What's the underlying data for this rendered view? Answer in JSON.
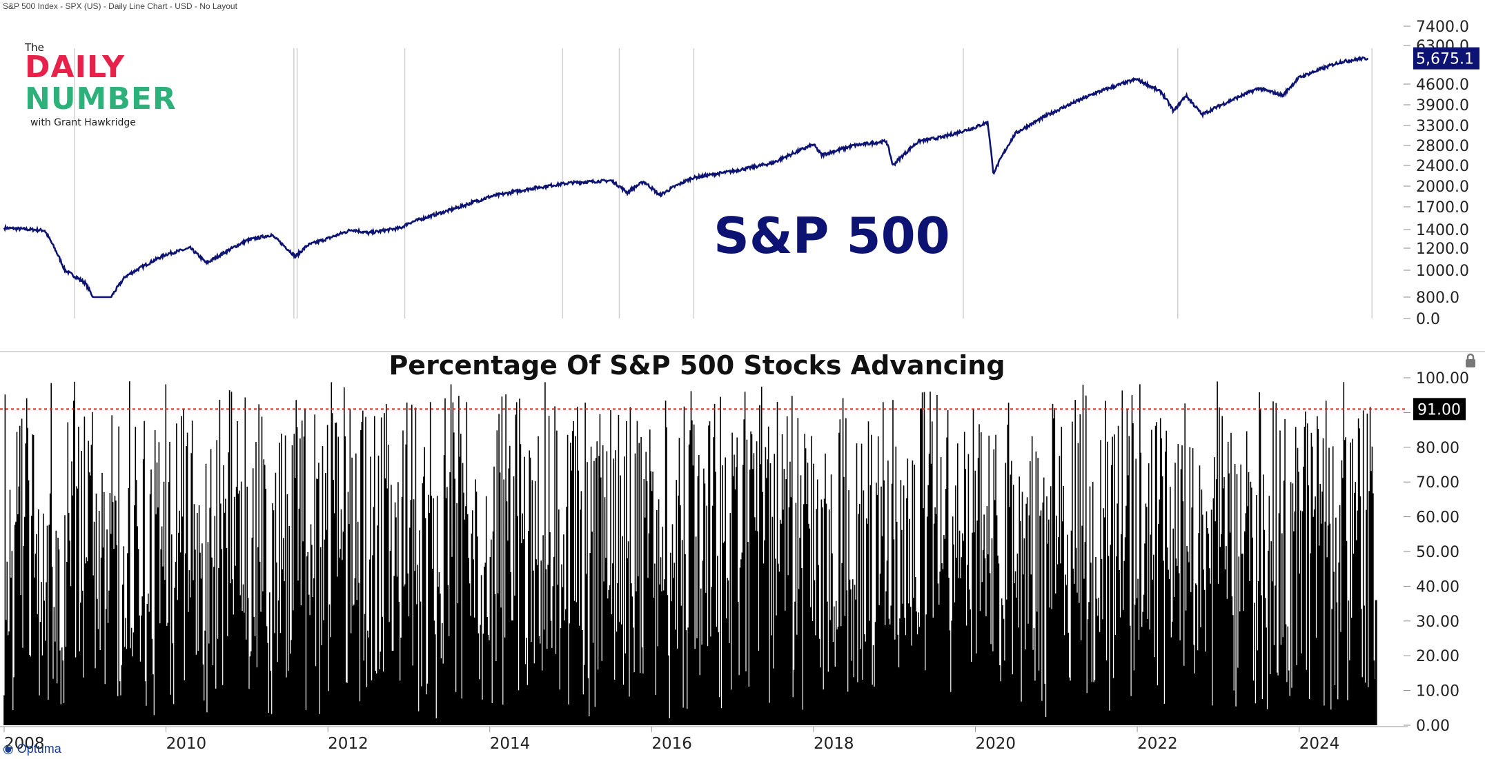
{
  "header": {
    "text": "S&P 500 Index - SPX (US) - Daily Line Chart - USD - No Layout"
  },
  "logo": {
    "the": "The",
    "daily": "DAILY",
    "number": "NUMBER",
    "with": "with Grant Hawkridge"
  },
  "brand": "Optuma",
  "colors": {
    "price_line": "#0d1372",
    "bars": "#000000",
    "threshold": "#e02020",
    "price_tag_bg": "#0d1372"
  },
  "chart_data": [
    {
      "type": "line",
      "title": "S&P 500",
      "series": [
        {
          "name": "S&P 500 Index - SPX",
          "values_note": "daily close"
        }
      ],
      "x_tick_labels": [
        "2008",
        "2010",
        "2012",
        "2014",
        "2016",
        "2018",
        "2020",
        "2022",
        "2024"
      ],
      "x": [
        2008.0,
        2008.5,
        2008.75,
        2009.0,
        2009.2,
        2009.5,
        2010.0,
        2010.3,
        2010.5,
        2011.0,
        2011.3,
        2011.6,
        2011.75,
        2012.0,
        2012.3,
        2012.5,
        2012.9,
        2013.0,
        2013.5,
        2014.0,
        2014.5,
        2015.0,
        2015.5,
        2015.7,
        2015.9,
        2016.1,
        2016.5,
        2017.0,
        2017.5,
        2018.0,
        2018.1,
        2018.5,
        2018.9,
        2018.98,
        2019.3,
        2019.6,
        2020.0,
        2020.15,
        2020.22,
        2020.5,
        2020.9,
        2021.5,
        2021.99,
        2022.3,
        2022.45,
        2022.6,
        2022.8,
        2023.0,
        2023.5,
        2023.8,
        2024.0,
        2024.5,
        2024.75,
        2024.85
      ],
      "values": [
        1420,
        1390,
        1000,
        900,
        700,
        950,
        1140,
        1200,
        1060,
        1280,
        1340,
        1120,
        1230,
        1300,
        1400,
        1360,
        1420,
        1480,
        1650,
        1840,
        1960,
        2060,
        2100,
        1900,
        2080,
        1860,
        2150,
        2280,
        2450,
        2820,
        2600,
        2800,
        2900,
        2400,
        2900,
        3000,
        3250,
        3390,
        2240,
        3100,
        3600,
        4300,
        4790,
        4300,
        3700,
        4200,
        3600,
        3850,
        4450,
        4200,
        4850,
        5500,
        5650,
        5675.1
      ],
      "last_value_label": "5,675.1",
      "y_tick_labels": [
        "7400.0",
        "6300.0",
        "4600.0",
        "3900.0",
        "3300.0",
        "2800.0",
        "2400.0",
        "2000.0",
        "1700.0",
        "1400.0",
        "1200.0",
        "1000.0",
        "800.0",
        "0.0"
      ],
      "y_ticks": [
        7400,
        6300,
        4600,
        3900,
        3300,
        2800,
        2400,
        2000,
        1700,
        1400,
        1200,
        1000,
        800,
        0
      ],
      "y_scale": "log"
    },
    {
      "type": "bar",
      "title": "Percentage Of S&P 500 Stocks Advancing",
      "series": [
        {
          "name": "% Advancing",
          "values_note": "daily percentage 0-100, ~4200 bars 2008-2024"
        }
      ],
      "x_range": [
        2008.0,
        2024.95
      ],
      "ylim": [
        0,
        100
      ],
      "y_tick_labels": [
        "100.00",
        "90.00",
        "80.00",
        "70.00",
        "60.00",
        "50.00",
        "40.00",
        "30.00",
        "20.00",
        "10.00",
        "0.00"
      ],
      "y_ticks": [
        100,
        90,
        80,
        70,
        60,
        50,
        40,
        30,
        20,
        10,
        0
      ],
      "threshold": {
        "value": 91,
        "label": "91.00"
      },
      "last_value": 36
    }
  ]
}
